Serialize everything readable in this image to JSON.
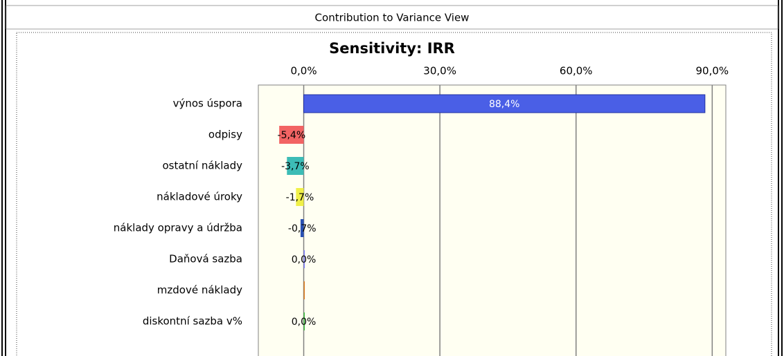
{
  "window_title": "Contribution to Variance View",
  "chart_data": {
    "type": "bar",
    "orientation": "horizontal",
    "title": "Sensitivity: IRR",
    "categories": [
      "výnos úspora",
      "odpisy",
      "ostatní náklady",
      "nákladové úroky",
      "náklady opravy a údržba",
      "Daňová sazba",
      "mzdové náklady",
      "diskontní sazba v%"
    ],
    "values": [
      88.4,
      -5.4,
      -3.7,
      -1.7,
      -0.7,
      0.0,
      0.1,
      0.0
    ],
    "value_labels": [
      "88,4%",
      "-5,4%",
      "-3,7%",
      "-1,7%",
      "-0,7%",
      "0,0%",
      null,
      "0,0%"
    ],
    "colors": [
      "#4a5fe6",
      "#f26464",
      "#3cbcb6",
      "#f0f048",
      "#2850b4",
      "#8080ff",
      "#e08020",
      "#40c040"
    ],
    "xlim": [
      -10,
      93
    ],
    "xticks": [
      {
        "value": 0,
        "label": "0,0%"
      },
      {
        "value": 30,
        "label": "30,0%"
      },
      {
        "value": 60,
        "label": "60,0%"
      },
      {
        "value": 90,
        "label": "90,0%"
      }
    ],
    "grid": true
  }
}
